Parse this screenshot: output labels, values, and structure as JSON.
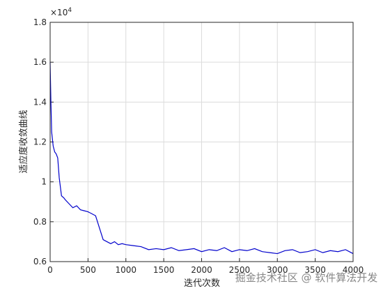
{
  "chart_data": {
    "type": "line",
    "x_label": "迭代次数",
    "y_label": "适应度收敛曲线",
    "y_multiplier": "×10",
    "y_multiplier_exp": "4",
    "watermark": "掘金技术社区 @ 软件算法开发",
    "x": [
      0,
      10,
      20,
      40,
      60,
      80,
      100,
      120,
      150,
      180,
      200,
      250,
      300,
      350,
      400,
      450,
      500,
      550,
      600,
      650,
      700,
      750,
      800,
      850,
      900,
      950,
      1000,
      1100,
      1200,
      1300,
      1400,
      1500,
      1600,
      1700,
      1800,
      1900,
      2000,
      2100,
      2200,
      2300,
      2400,
      2500,
      2600,
      2700,
      2800,
      2900,
      3000,
      3100,
      3200,
      3300,
      3400,
      3500,
      3600,
      3700,
      3800,
      3900,
      4000
    ],
    "series": [
      {
        "name": "适应度",
        "color": "#0000cc",
        "values": [
          1.6,
          1.4,
          1.25,
          1.18,
          1.15,
          1.14,
          1.12,
          1.02,
          0.93,
          0.92,
          0.91,
          0.89,
          0.87,
          0.88,
          0.86,
          0.855,
          0.85,
          0.84,
          0.83,
          0.77,
          0.71,
          0.7,
          0.69,
          0.7,
          0.685,
          0.69,
          0.685,
          0.68,
          0.675,
          0.66,
          0.665,
          0.66,
          0.67,
          0.655,
          0.66,
          0.665,
          0.65,
          0.66,
          0.655,
          0.67,
          0.65,
          0.66,
          0.655,
          0.665,
          0.65,
          0.645,
          0.64,
          0.655,
          0.66,
          0.645,
          0.65,
          0.66,
          0.645,
          0.655,
          0.65,
          0.66,
          0.64
        ]
      }
    ],
    "xlim": [
      0,
      4000
    ],
    "xticks": [
      0,
      500,
      1000,
      1500,
      2000,
      2500,
      3000,
      3500,
      4000
    ],
    "ylim": [
      0.6,
      1.8
    ],
    "yticks": [
      0.6,
      0.8,
      1,
      1.2,
      1.4,
      1.6,
      1.8
    ],
    "grid": true
  }
}
